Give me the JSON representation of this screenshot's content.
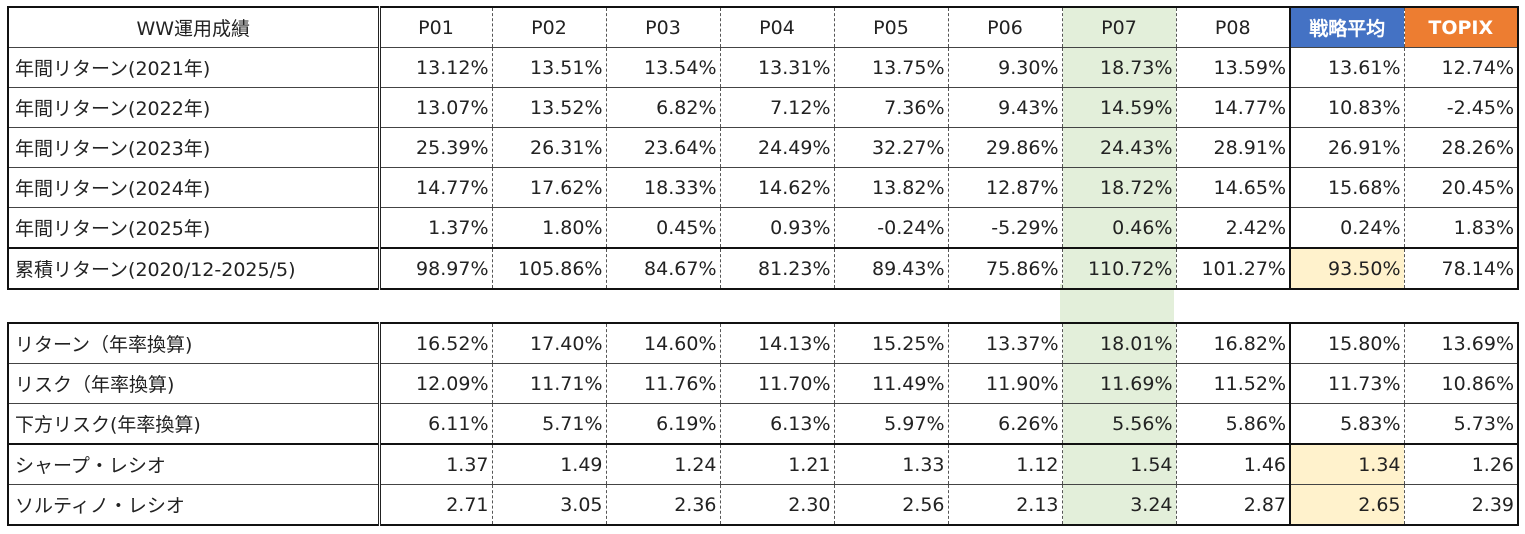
{
  "columns": [
    "P01",
    "P02",
    "P03",
    "P04",
    "P05",
    "P06",
    "P07",
    "P08",
    "戦略平均",
    "TOPIX"
  ],
  "table1": {
    "header_label": "WW運用成績",
    "rows": [
      {
        "label": "年間リターン(2021年)",
        "values": [
          "13.12%",
          "13.51%",
          "13.54%",
          "13.31%",
          "13.75%",
          "9.30%",
          "18.73%",
          "13.59%",
          "13.61%",
          "12.74%"
        ]
      },
      {
        "label": "年間リターン(2022年)",
        "values": [
          "13.07%",
          "13.52%",
          "6.82%",
          "7.12%",
          "7.36%",
          "9.43%",
          "14.59%",
          "14.77%",
          "10.83%",
          "-2.45%"
        ]
      },
      {
        "label": "年間リターン(2023年)",
        "values": [
          "25.39%",
          "26.31%",
          "23.64%",
          "24.49%",
          "32.27%",
          "29.86%",
          "24.43%",
          "28.91%",
          "26.91%",
          "28.26%"
        ]
      },
      {
        "label": "年間リターン(2024年)",
        "values": [
          "14.77%",
          "17.62%",
          "18.33%",
          "14.62%",
          "13.82%",
          "12.87%",
          "18.72%",
          "14.65%",
          "15.68%",
          "20.45%"
        ]
      },
      {
        "label": "年間リターン(2025年)",
        "values": [
          "1.37%",
          "1.80%",
          "0.45%",
          "0.93%",
          "-0.24%",
          "-5.29%",
          "0.46%",
          "2.42%",
          "0.24%",
          "1.83%"
        ]
      },
      {
        "label": "累積リターン(2020/12-2025/5)",
        "values": [
          "98.97%",
          "105.86%",
          "84.67%",
          "81.23%",
          "89.43%",
          "75.86%",
          "110.72%",
          "101.27%",
          "93.50%",
          "78.14%"
        ]
      }
    ]
  },
  "table2": {
    "rows": [
      {
        "label": "リターン（年率換算)",
        "values": [
          "16.52%",
          "17.40%",
          "14.60%",
          "14.13%",
          "15.25%",
          "13.37%",
          "18.01%",
          "16.82%",
          "15.80%",
          "13.69%"
        ]
      },
      {
        "label": "リスク（年率換算)",
        "values": [
          "12.09%",
          "11.71%",
          "11.76%",
          "11.70%",
          "11.49%",
          "11.90%",
          "11.69%",
          "11.52%",
          "11.73%",
          "10.86%"
        ]
      },
      {
        "label": "下方リスク(年率換算)",
        "values": [
          "6.11%",
          "5.71%",
          "6.19%",
          "6.13%",
          "5.97%",
          "6.26%",
          "5.56%",
          "5.86%",
          "5.83%",
          "5.73%"
        ]
      },
      {
        "label": "シャープ・レシオ",
        "values": [
          "1.37",
          "1.49",
          "1.24",
          "1.21",
          "1.33",
          "1.12",
          "1.54",
          "1.46",
          "1.34",
          "1.26"
        ]
      },
      {
        "label": "ソルティノ・レシオ",
        "values": [
          "2.71",
          "3.05",
          "2.36",
          "2.30",
          "2.56",
          "2.13",
          "3.24",
          "2.87",
          "2.65",
          "2.39"
        ]
      }
    ]
  },
  "colors": {
    "p07_highlight": "#e3efda",
    "avg_header": "#4472c4",
    "topix_header": "#ed7d31",
    "avg_highlight": "#fff2cc"
  }
}
